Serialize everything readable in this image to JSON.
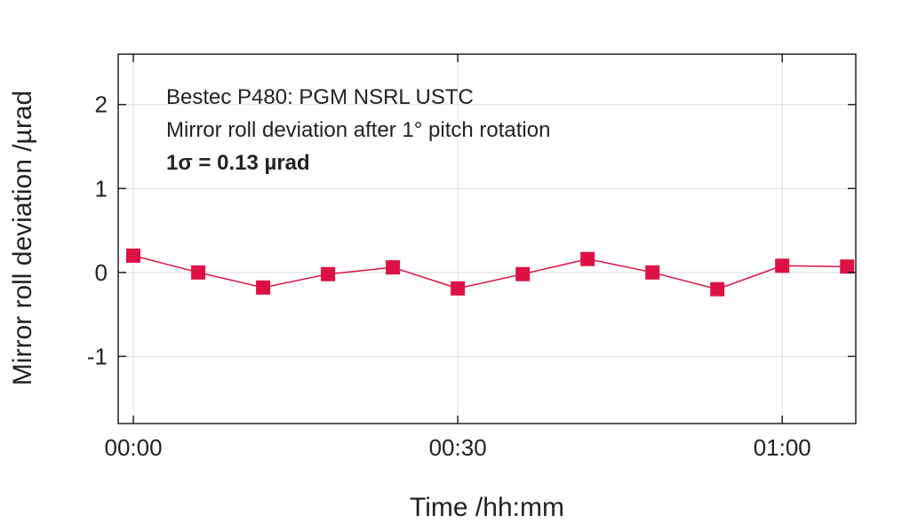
{
  "chart_data": {
    "type": "line",
    "title": "",
    "xlabel": "Time /hh:mm",
    "ylabel": "Mirror roll deviation /µrad",
    "x_ticks": [
      "00:00",
      "00:30",
      "01:00"
    ],
    "x_tick_minutes": [
      0,
      30,
      60
    ],
    "y_ticks": [
      "2",
      "1",
      "0",
      "-1"
    ],
    "y_tick_values": [
      2,
      1,
      0,
      -1
    ],
    "xlim_minutes": [
      -1.4,
      66.8
    ],
    "ylim": [
      -1.8,
      2.6
    ],
    "grid": true,
    "legend": "none",
    "annotations": [
      "Bestec P480: PGM NSRL USTC",
      "Mirror roll deviation after 1° pitch rotation",
      "1σ = 0.13 µrad"
    ],
    "series": [
      {
        "marker": "square",
        "x_minutes": [
          0,
          6,
          12,
          18,
          24,
          30,
          36,
          42,
          48,
          54,
          60,
          66
        ],
        "values": [
          0.2,
          0.0,
          -0.18,
          -0.02,
          0.06,
          -0.19,
          -0.02,
          0.16,
          0.0,
          -0.2,
          0.08,
          0.07
        ]
      }
    ],
    "colors": {
      "series": "#dd1144",
      "axis": "#222222",
      "grid": "#dddddd",
      "background": "#ffffff"
    }
  }
}
